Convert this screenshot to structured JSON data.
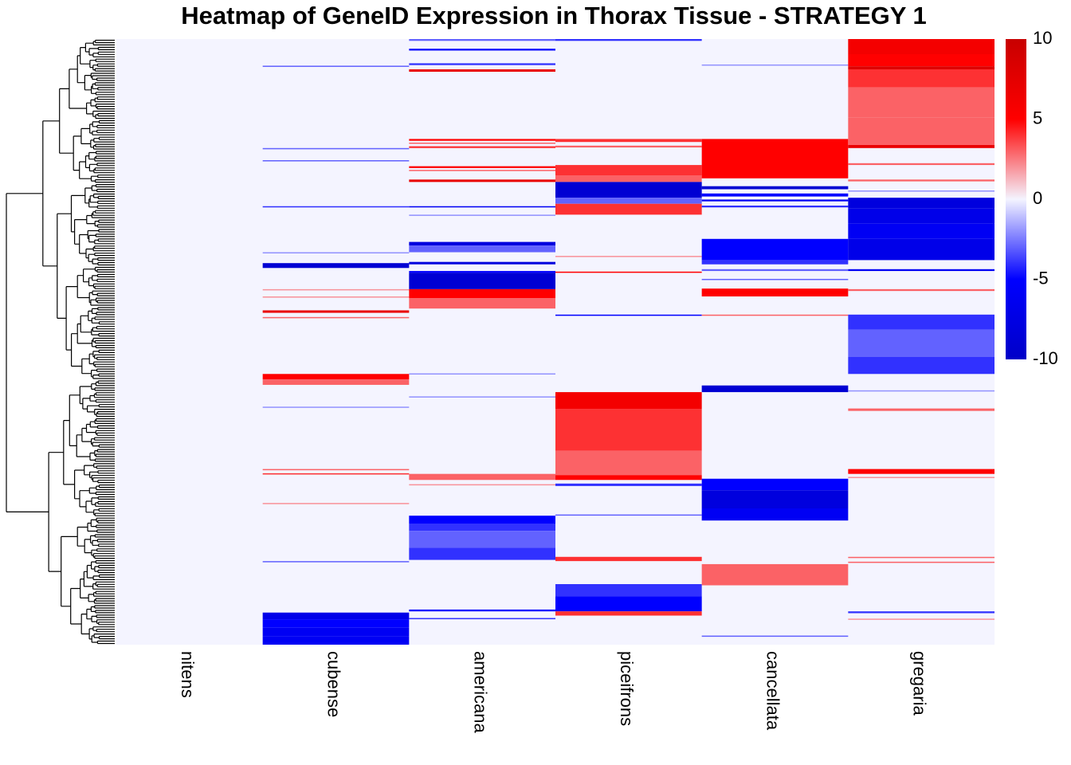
{
  "chart_data": {
    "type": "heatmap",
    "title": "Heatmap of GeneID Expression in Thorax Tissue - STRATEGY 1",
    "columns": [
      "nitens",
      "cubense",
      "americana",
      "piceifrons",
      "cancellata",
      "gregaria"
    ],
    "row_position_scale": [
      0,
      1
    ],
    "color_scale": {
      "min": -10,
      "max": 10,
      "stops": [
        {
          "value": -10,
          "color": "#0000c8"
        },
        {
          "value": -5,
          "color": "#0000ff"
        },
        {
          "value": 0,
          "color": "#f4f4ff"
        },
        {
          "value": 5,
          "color": "#ff0000"
        },
        {
          "value": 10,
          "color": "#c80000"
        }
      ],
      "tick_values": [
        10,
        5,
        0,
        -5,
        -10
      ],
      "tick_labels": [
        "10",
        "5",
        "0",
        "-5",
        "-10"
      ]
    },
    "background_value": 0,
    "blocks": [
      {
        "column": "cubense",
        "from": 0.044,
        "to": 0.046,
        "value": -3
      },
      {
        "column": "cubense",
        "from": 0.18,
        "to": 0.182,
        "value": -3
      },
      {
        "column": "cubense",
        "from": 0.2,
        "to": 0.202,
        "value": -3
      },
      {
        "column": "cubense",
        "from": 0.276,
        "to": 0.278,
        "value": -4
      },
      {
        "column": "cubense",
        "from": 0.352,
        "to": 0.354,
        "value": -2
      },
      {
        "column": "cubense",
        "from": 0.37,
        "to": 0.378,
        "value": -9
      },
      {
        "column": "cubense",
        "from": 0.413,
        "to": 0.415,
        "value": 2
      },
      {
        "column": "cubense",
        "from": 0.425,
        "to": 0.427,
        "value": 2
      },
      {
        "column": "cubense",
        "from": 0.448,
        "to": 0.452,
        "value": 7
      },
      {
        "column": "cubense",
        "from": 0.459,
        "to": 0.461,
        "value": 3
      },
      {
        "column": "cubense",
        "from": 0.553,
        "to": 0.562,
        "value": 5
      },
      {
        "column": "cubense",
        "from": 0.562,
        "to": 0.571,
        "value": 3
      },
      {
        "column": "cubense",
        "from": 0.607,
        "to": 0.609,
        "value": -2
      },
      {
        "column": "cubense",
        "from": 0.71,
        "to": 0.712,
        "value": 3
      },
      {
        "column": "cubense",
        "from": 0.717,
        "to": 0.719,
        "value": 4
      },
      {
        "column": "cubense",
        "from": 0.766,
        "to": 0.768,
        "value": 2
      },
      {
        "column": "cubense",
        "from": 0.862,
        "to": 0.864,
        "value": -3
      },
      {
        "column": "cubense",
        "from": 0.947,
        "to": 0.958,
        "value": -7
      },
      {
        "column": "cubense",
        "from": 0.958,
        "to": 0.972,
        "value": -5
      },
      {
        "column": "cubense",
        "from": 0.972,
        "to": 0.986,
        "value": -6
      },
      {
        "column": "cubense",
        "from": 0.986,
        "to": 1.0,
        "value": -6
      },
      {
        "column": "americana",
        "from": 0.0,
        "to": 0.003,
        "value": -3
      },
      {
        "column": "americana",
        "from": 0.016,
        "to": 0.019,
        "value": -5
      },
      {
        "column": "americana",
        "from": 0.04,
        "to": 0.043,
        "value": -4
      },
      {
        "column": "americana",
        "from": 0.05,
        "to": 0.054,
        "value": 7
      },
      {
        "column": "americana",
        "from": 0.165,
        "to": 0.168,
        "value": 5
      },
      {
        "column": "americana",
        "from": 0.171,
        "to": 0.173,
        "value": 3
      },
      {
        "column": "americana",
        "from": 0.177,
        "to": 0.18,
        "value": 4
      },
      {
        "column": "americana",
        "from": 0.21,
        "to": 0.213,
        "value": 5
      },
      {
        "column": "americana",
        "from": 0.216,
        "to": 0.218,
        "value": 3
      },
      {
        "column": "americana",
        "from": 0.232,
        "to": 0.236,
        "value": 7
      },
      {
        "column": "americana",
        "from": 0.276,
        "to": 0.278,
        "value": -6
      },
      {
        "column": "americana",
        "from": 0.29,
        "to": 0.292,
        "value": -2
      },
      {
        "column": "americana",
        "from": 0.335,
        "to": 0.341,
        "value": -8
      },
      {
        "column": "americana",
        "from": 0.341,
        "to": 0.352,
        "value": -3
      },
      {
        "column": "americana",
        "from": 0.368,
        "to": 0.372,
        "value": -8
      },
      {
        "column": "americana",
        "from": 0.383,
        "to": 0.386,
        "value": -5
      },
      {
        "column": "americana",
        "from": 0.386,
        "to": 0.413,
        "value": -9
      },
      {
        "column": "americana",
        "from": 0.413,
        "to": 0.428,
        "value": 5
      },
      {
        "column": "americana",
        "from": 0.428,
        "to": 0.445,
        "value": 3
      },
      {
        "column": "americana",
        "from": 0.552,
        "to": 0.554,
        "value": -2
      },
      {
        "column": "americana",
        "from": 0.59,
        "to": 0.592,
        "value": -2
      },
      {
        "column": "americana",
        "from": 0.718,
        "to": 0.728,
        "value": 3
      },
      {
        "column": "americana",
        "from": 0.735,
        "to": 0.737,
        "value": 2
      },
      {
        "column": "americana",
        "from": 0.787,
        "to": 0.8,
        "value": -5
      },
      {
        "column": "americana",
        "from": 0.8,
        "to": 0.812,
        "value": -4
      },
      {
        "column": "americana",
        "from": 0.812,
        "to": 0.84,
        "value": -3
      },
      {
        "column": "americana",
        "from": 0.84,
        "to": 0.86,
        "value": -4
      },
      {
        "column": "americana",
        "from": 0.942,
        "to": 0.945,
        "value": -5
      },
      {
        "column": "americana",
        "from": 0.956,
        "to": 0.958,
        "value": -4
      },
      {
        "column": "piceifrons",
        "from": 0.0,
        "to": 0.003,
        "value": -4
      },
      {
        "column": "piceifrons",
        "from": 0.165,
        "to": 0.17,
        "value": 4
      },
      {
        "column": "piceifrons",
        "from": 0.176,
        "to": 0.179,
        "value": 3
      },
      {
        "column": "piceifrons",
        "from": 0.208,
        "to": 0.225,
        "value": 4
      },
      {
        "column": "piceifrons",
        "from": 0.225,
        "to": 0.236,
        "value": 3
      },
      {
        "column": "piceifrons",
        "from": 0.236,
        "to": 0.262,
        "value": -9
      },
      {
        "column": "piceifrons",
        "from": 0.262,
        "to": 0.272,
        "value": -3
      },
      {
        "column": "piceifrons",
        "from": 0.272,
        "to": 0.29,
        "value": 4
      },
      {
        "column": "piceifrons",
        "from": 0.358,
        "to": 0.36,
        "value": 2
      },
      {
        "column": "piceifrons",
        "from": 0.384,
        "to": 0.386,
        "value": 5
      },
      {
        "column": "piceifrons",
        "from": 0.455,
        "to": 0.457,
        "value": -5
      },
      {
        "column": "piceifrons",
        "from": 0.583,
        "to": 0.611,
        "value": 6
      },
      {
        "column": "piceifrons",
        "from": 0.611,
        "to": 0.68,
        "value": 4
      },
      {
        "column": "piceifrons",
        "from": 0.68,
        "to": 0.72,
        "value": 3
      },
      {
        "column": "piceifrons",
        "from": 0.72,
        "to": 0.728,
        "value": 5
      },
      {
        "column": "piceifrons",
        "from": 0.734,
        "to": 0.738,
        "value": -4
      },
      {
        "column": "piceifrons",
        "from": 0.785,
        "to": 0.787,
        "value": -3
      },
      {
        "column": "piceifrons",
        "from": 0.855,
        "to": 0.862,
        "value": 4
      },
      {
        "column": "piceifrons",
        "from": 0.9,
        "to": 0.92,
        "value": -4
      },
      {
        "column": "piceifrons",
        "from": 0.92,
        "to": 0.945,
        "value": -5
      },
      {
        "column": "piceifrons",
        "from": 0.945,
        "to": 0.952,
        "value": 4
      },
      {
        "column": "cancellata",
        "from": 0.042,
        "to": 0.044,
        "value": -2
      },
      {
        "column": "cancellata",
        "from": 0.165,
        "to": 0.23,
        "value": 5
      },
      {
        "column": "cancellata",
        "from": 0.243,
        "to": 0.248,
        "value": -9
      },
      {
        "column": "cancellata",
        "from": 0.255,
        "to": 0.26,
        "value": -5
      },
      {
        "column": "cancellata",
        "from": 0.265,
        "to": 0.268,
        "value": -6
      },
      {
        "column": "cancellata",
        "from": 0.275,
        "to": 0.278,
        "value": -4
      },
      {
        "column": "cancellata",
        "from": 0.33,
        "to": 0.365,
        "value": -5
      },
      {
        "column": "cancellata",
        "from": 0.365,
        "to": 0.372,
        "value": -4
      },
      {
        "column": "cancellata",
        "from": 0.38,
        "to": 0.383,
        "value": -3
      },
      {
        "column": "cancellata",
        "from": 0.396,
        "to": 0.398,
        "value": -3
      },
      {
        "column": "cancellata",
        "from": 0.412,
        "to": 0.425,
        "value": 5
      },
      {
        "column": "cancellata",
        "from": 0.455,
        "to": 0.457,
        "value": 3
      },
      {
        "column": "cancellata",
        "from": 0.572,
        "to": 0.583,
        "value": -9
      },
      {
        "column": "cancellata",
        "from": 0.726,
        "to": 0.745,
        "value": -5
      },
      {
        "column": "cancellata",
        "from": 0.745,
        "to": 0.775,
        "value": -8
      },
      {
        "column": "cancellata",
        "from": 0.775,
        "to": 0.795,
        "value": -6
      },
      {
        "column": "cancellata",
        "from": 0.867,
        "to": 0.902,
        "value": 3
      },
      {
        "column": "cancellata",
        "from": 0.985,
        "to": 0.987,
        "value": -3
      },
      {
        "column": "gregaria",
        "from": 0.0,
        "to": 0.025,
        "value": 6
      },
      {
        "column": "gregaria",
        "from": 0.025,
        "to": 0.045,
        "value": 5
      },
      {
        "column": "gregaria",
        "from": 0.045,
        "to": 0.05,
        "value": 8
      },
      {
        "column": "gregaria",
        "from": 0.05,
        "to": 0.08,
        "value": 4
      },
      {
        "column": "gregaria",
        "from": 0.08,
        "to": 0.13,
        "value": 3
      },
      {
        "column": "gregaria",
        "from": 0.13,
        "to": 0.175,
        "value": 3
      },
      {
        "column": "gregaria",
        "from": 0.175,
        "to": 0.18,
        "value": 7
      },
      {
        "column": "gregaria",
        "from": 0.205,
        "to": 0.208,
        "value": 3
      },
      {
        "column": "gregaria",
        "from": 0.232,
        "to": 0.235,
        "value": 3
      },
      {
        "column": "gregaria",
        "from": 0.25,
        "to": 0.252,
        "value": -2
      },
      {
        "column": "gregaria",
        "from": 0.262,
        "to": 0.28,
        "value": -8
      },
      {
        "column": "gregaria",
        "from": 0.28,
        "to": 0.305,
        "value": -7
      },
      {
        "column": "gregaria",
        "from": 0.305,
        "to": 0.33,
        "value": -6
      },
      {
        "column": "gregaria",
        "from": 0.33,
        "to": 0.365,
        "value": -7
      },
      {
        "column": "gregaria",
        "from": 0.38,
        "to": 0.383,
        "value": -6
      },
      {
        "column": "gregaria",
        "from": 0.413,
        "to": 0.416,
        "value": 3
      },
      {
        "column": "gregaria",
        "from": 0.455,
        "to": 0.48,
        "value": -4
      },
      {
        "column": "gregaria",
        "from": 0.48,
        "to": 0.525,
        "value": -3
      },
      {
        "column": "gregaria",
        "from": 0.525,
        "to": 0.553,
        "value": -4
      },
      {
        "column": "gregaria",
        "from": 0.58,
        "to": 0.582,
        "value": -2
      },
      {
        "column": "gregaria",
        "from": 0.61,
        "to": 0.614,
        "value": 3
      },
      {
        "column": "gregaria",
        "from": 0.71,
        "to": 0.718,
        "value": 5
      },
      {
        "column": "gregaria",
        "from": 0.723,
        "to": 0.725,
        "value": 2
      },
      {
        "column": "gregaria",
        "from": 0.855,
        "to": 0.857,
        "value": 3
      },
      {
        "column": "gregaria",
        "from": 0.863,
        "to": 0.865,
        "value": 3
      },
      {
        "column": "gregaria",
        "from": 0.945,
        "to": 0.948,
        "value": -4
      },
      {
        "column": "gregaria",
        "from": 0.957,
        "to": 0.959,
        "value": 2
      }
    ]
  }
}
